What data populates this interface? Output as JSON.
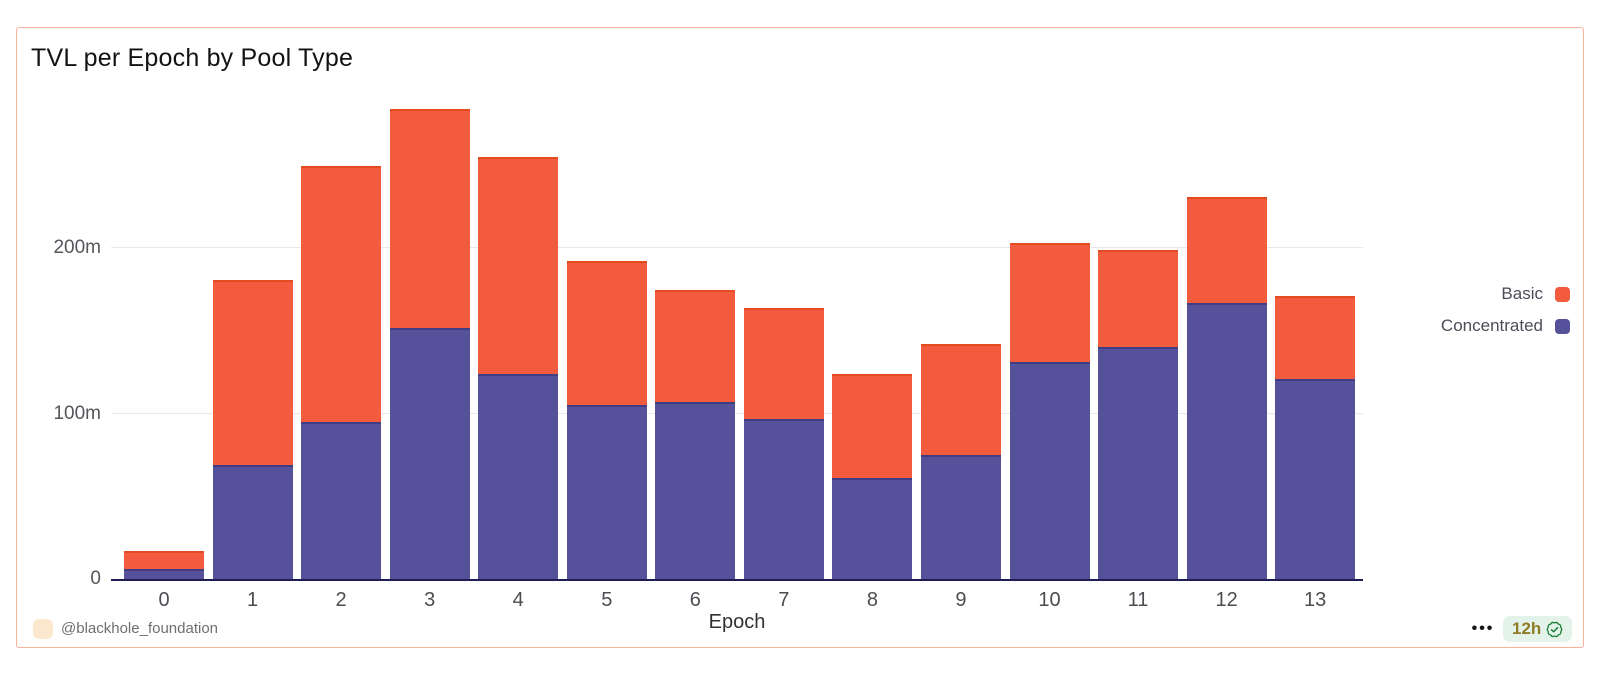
{
  "card": {
    "border_color": "#f8b19b",
    "background": "#ffffff"
  },
  "chart_data": {
    "type": "bar",
    "stacked": true,
    "title": "TVL per Epoch by Pool Type",
    "xlabel": "Epoch",
    "ylabel": "",
    "unit": "m",
    "categories": [
      "0",
      "1",
      "2",
      "3",
      "4",
      "5",
      "6",
      "7",
      "8",
      "9",
      "10",
      "11",
      "12",
      "13"
    ],
    "series": [
      {
        "name": "Basic",
        "color": "#F25B3D",
        "edge_color": "#E44B21",
        "values": [
          11,
          112,
          155,
          132,
          131,
          87,
          68,
          67,
          63,
          67,
          72,
          59,
          64,
          50
        ]
      },
      {
        "name": "Concentrated",
        "color": "#55529B",
        "edge_color": "#403D82",
        "values": [
          6,
          69,
          95,
          152,
          124,
          105,
          107,
          97,
          61,
          75,
          131,
          140,
          167,
          121
        ]
      }
    ],
    "stack_bottom_to_top": [
      "Concentrated",
      "Basic"
    ],
    "ylim": [
      0,
      292
    ],
    "yticks": [
      {
        "value": 0,
        "label": "0"
      },
      {
        "value": 100,
        "label": "100m"
      },
      {
        "value": 200,
        "label": "200m"
      }
    ],
    "grid": true,
    "legend_position": "right",
    "axis_line_color": "#201d55",
    "gridline_color": "#e9e9ec"
  },
  "legend": {
    "items": [
      {
        "label": "Basic",
        "color": "#F25B3D"
      },
      {
        "label": "Concentrated",
        "color": "#55529B"
      }
    ]
  },
  "footer": {
    "handle": "@blackhole_foundation",
    "avatar_color": "#fbe8ce",
    "more_label": "•••",
    "time_badge": {
      "label": "12h",
      "bg": "#e4f3e9",
      "text_color": "#8f7b28",
      "check_color": "#1a7f37"
    }
  }
}
